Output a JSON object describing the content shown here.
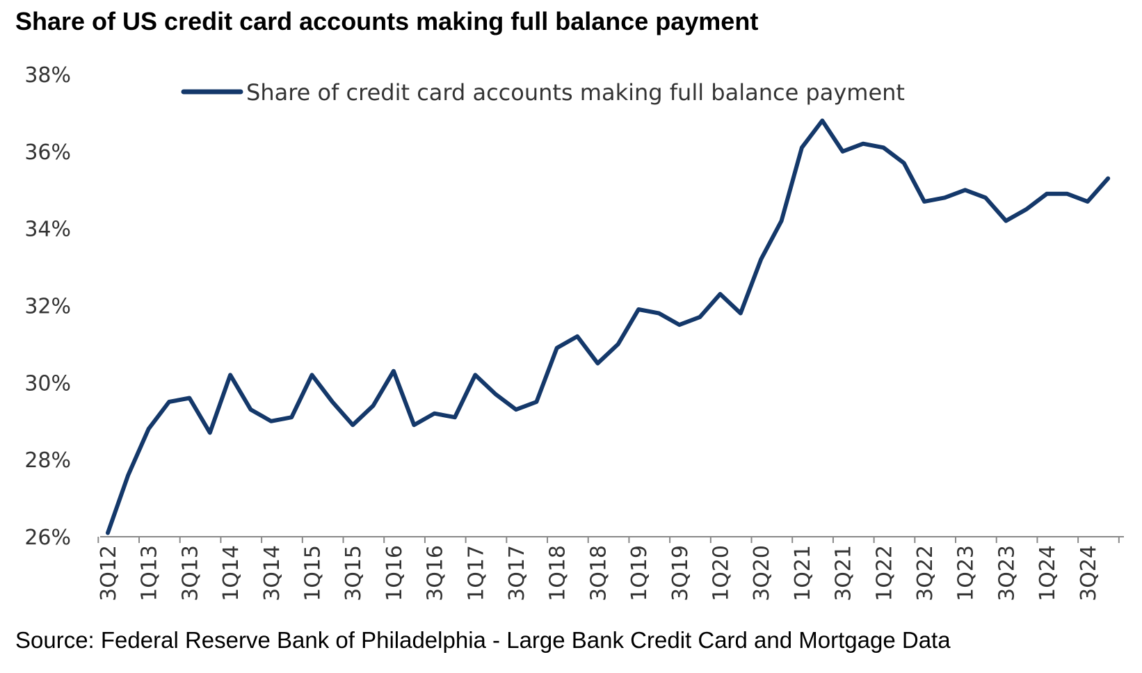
{
  "chart_data": {
    "type": "line",
    "title": "Share of US credit card accounts making full balance payment",
    "source": "Source: Federal Reserve Bank of Philadelphia - Large Bank Credit Card and Mortgage Data",
    "ylim": [
      26,
      38
    ],
    "yticks": [
      26,
      28,
      30,
      32,
      34,
      36,
      38
    ],
    "ytick_suffix": "%",
    "grid": false,
    "legend_position": "top-center",
    "xtick_labels": [
      "3Q12",
      "1Q13",
      "3Q13",
      "1Q14",
      "3Q14",
      "1Q15",
      "3Q15",
      "1Q16",
      "3Q16",
      "1Q17",
      "3Q17",
      "1Q18",
      "3Q18",
      "1Q19",
      "3Q19",
      "1Q20",
      "3Q20",
      "1Q21",
      "3Q21",
      "1Q22",
      "3Q22",
      "1Q23",
      "3Q23",
      "1Q24",
      "3Q24"
    ],
    "x": [
      "3Q12",
      "4Q12",
      "1Q13",
      "2Q13",
      "3Q13",
      "4Q13",
      "1Q14",
      "2Q14",
      "3Q14",
      "4Q14",
      "1Q15",
      "2Q15",
      "3Q15",
      "4Q15",
      "1Q16",
      "2Q16",
      "3Q16",
      "4Q16",
      "1Q17",
      "2Q17",
      "3Q17",
      "4Q17",
      "1Q18",
      "2Q18",
      "3Q18",
      "4Q18",
      "1Q19",
      "2Q19",
      "3Q19",
      "4Q19",
      "1Q20",
      "2Q20",
      "3Q20",
      "4Q20",
      "1Q21",
      "2Q21",
      "3Q21",
      "4Q21",
      "1Q22",
      "2Q22",
      "3Q22",
      "4Q22",
      "1Q23",
      "2Q23",
      "3Q23",
      "4Q23",
      "1Q24",
      "2Q24",
      "3Q24",
      "4Q24"
    ],
    "series": [
      {
        "name": "Share of credit card accounts making full balance payment",
        "color": "#14386a",
        "values": [
          26.1,
          27.6,
          28.8,
          29.5,
          29.6,
          28.7,
          30.2,
          29.3,
          29.0,
          29.1,
          30.2,
          29.5,
          28.9,
          29.4,
          30.3,
          28.9,
          29.2,
          29.1,
          30.2,
          29.7,
          29.3,
          29.5,
          30.9,
          31.2,
          30.5,
          31.0,
          31.9,
          31.8,
          31.5,
          31.7,
          32.3,
          31.8,
          33.2,
          34.2,
          36.1,
          36.8,
          36.0,
          36.2,
          36.1,
          35.7,
          34.7,
          34.8,
          35.0,
          34.8,
          34.2,
          34.5,
          34.9,
          34.9,
          34.7,
          35.3
        ]
      }
    ]
  }
}
